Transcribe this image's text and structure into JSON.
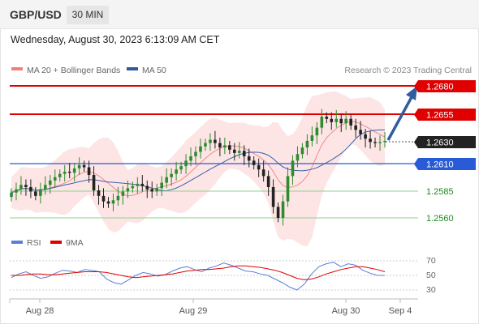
{
  "header": {
    "symbol": "GBP/USD",
    "timeframe": "30 MIN"
  },
  "timestamp": "Wednesday, August 30, 2023 6:13:09 AM CET",
  "legend_top": {
    "items": [
      {
        "label": "MA 20 + Bollinger Bands",
        "color": "#f08080"
      },
      {
        "label": "MA 50",
        "color": "#2f5b9a"
      }
    ]
  },
  "credit": "Research © 2023 Trading Central",
  "levels": [
    {
      "value": "1.2680",
      "kind": "resistance",
      "color": "#e00000"
    },
    {
      "value": "1.2655",
      "kind": "resistance",
      "color": "#e00000"
    },
    {
      "value": "1.2630",
      "kind": "current",
      "color": "#222222"
    },
    {
      "value": "1.2610",
      "kind": "pivot",
      "color": "#2a5bd7"
    },
    {
      "value": "1.2585",
      "kind": "support",
      "color": "#1f8a1f"
    },
    {
      "value": "1.2560",
      "kind": "support",
      "color": "#1f8a1f"
    }
  ],
  "legend_bottom": {
    "items": [
      {
        "label": "RSI",
        "color": "#5b7fd6"
      },
      {
        "label": "9MA",
        "color": "#e00000"
      }
    ]
  },
  "rsi_ticks": [
    "70",
    "50",
    "30"
  ],
  "x_ticks": [
    "Aug 28",
    "Aug 29",
    "Aug 30",
    "Sep 4"
  ],
  "chart_data": [
    {
      "type": "candlestick",
      "title": "GBP/USD",
      "subtitle": "30 MIN",
      "y_levels": [
        1.268,
        1.2655,
        1.263,
        1.261,
        1.2585,
        1.256
      ],
      "close_series": [
        1.2583,
        1.2586,
        1.259,
        1.2588,
        1.2584,
        1.258,
        1.2586,
        1.259,
        1.2594,
        1.2597,
        1.26,
        1.2602,
        1.2601,
        1.2605,
        1.2608,
        1.2606,
        1.2599,
        1.2585,
        1.258,
        1.2575,
        1.2573,
        1.2576,
        1.258,
        1.2584,
        1.2587,
        1.2589,
        1.2591,
        1.2589,
        1.2586,
        1.2584,
        1.2587,
        1.2592,
        1.2597,
        1.26,
        1.2604,
        1.2607,
        1.2612,
        1.2616,
        1.262,
        1.2625,
        1.2628,
        1.2631,
        1.2628,
        1.2624,
        1.2626,
        1.2622,
        1.2619,
        1.2621,
        1.2616,
        1.2612,
        1.2608,
        1.2604,
        1.2598,
        1.2588,
        1.257,
        1.256,
        1.2575,
        1.2598,
        1.2612,
        1.2618,
        1.2624,
        1.263,
        1.2635,
        1.2642,
        1.2652,
        1.265,
        1.2647,
        1.265,
        1.2646,
        1.265,
        1.2644,
        1.264,
        1.2636,
        1.2632,
        1.2629,
        1.2628,
        1.2629,
        1.263
      ],
      "trend_arrow": "up toward 1.2680",
      "xlabels": [
        "Aug 28",
        "Aug 29",
        "Aug 30",
        "Sep 4"
      ]
    },
    {
      "type": "line",
      "series": [
        {
          "name": "RSI",
          "values": [
            47,
            52,
            55,
            50,
            46,
            48,
            53,
            57,
            56,
            54,
            58,
            57,
            55,
            45,
            40,
            38,
            44,
            50,
            54,
            52,
            49,
            51,
            56,
            60,
            62,
            58,
            55,
            60,
            63,
            67,
            64,
            60,
            56,
            55,
            52,
            50,
            45,
            40,
            34,
            30,
            38,
            52,
            62,
            66,
            68,
            62,
            66,
            64,
            57,
            53,
            50,
            50
          ]
        },
        {
          "name": "9MA",
          "values": [
            50,
            50,
            51,
            52,
            52,
            51,
            51,
            52,
            53,
            54,
            55,
            55,
            55,
            54,
            52,
            50,
            48,
            47,
            48,
            49,
            50,
            51,
            52,
            54,
            56,
            57,
            58,
            58,
            59,
            60,
            62,
            63,
            63,
            62,
            61,
            59,
            57,
            54,
            50,
            46,
            44,
            45,
            48,
            52,
            55,
            58,
            60,
            62,
            62,
            60,
            58,
            55
          ]
        }
      ],
      "y_ticks": [
        70,
        50,
        30
      ]
    }
  ]
}
